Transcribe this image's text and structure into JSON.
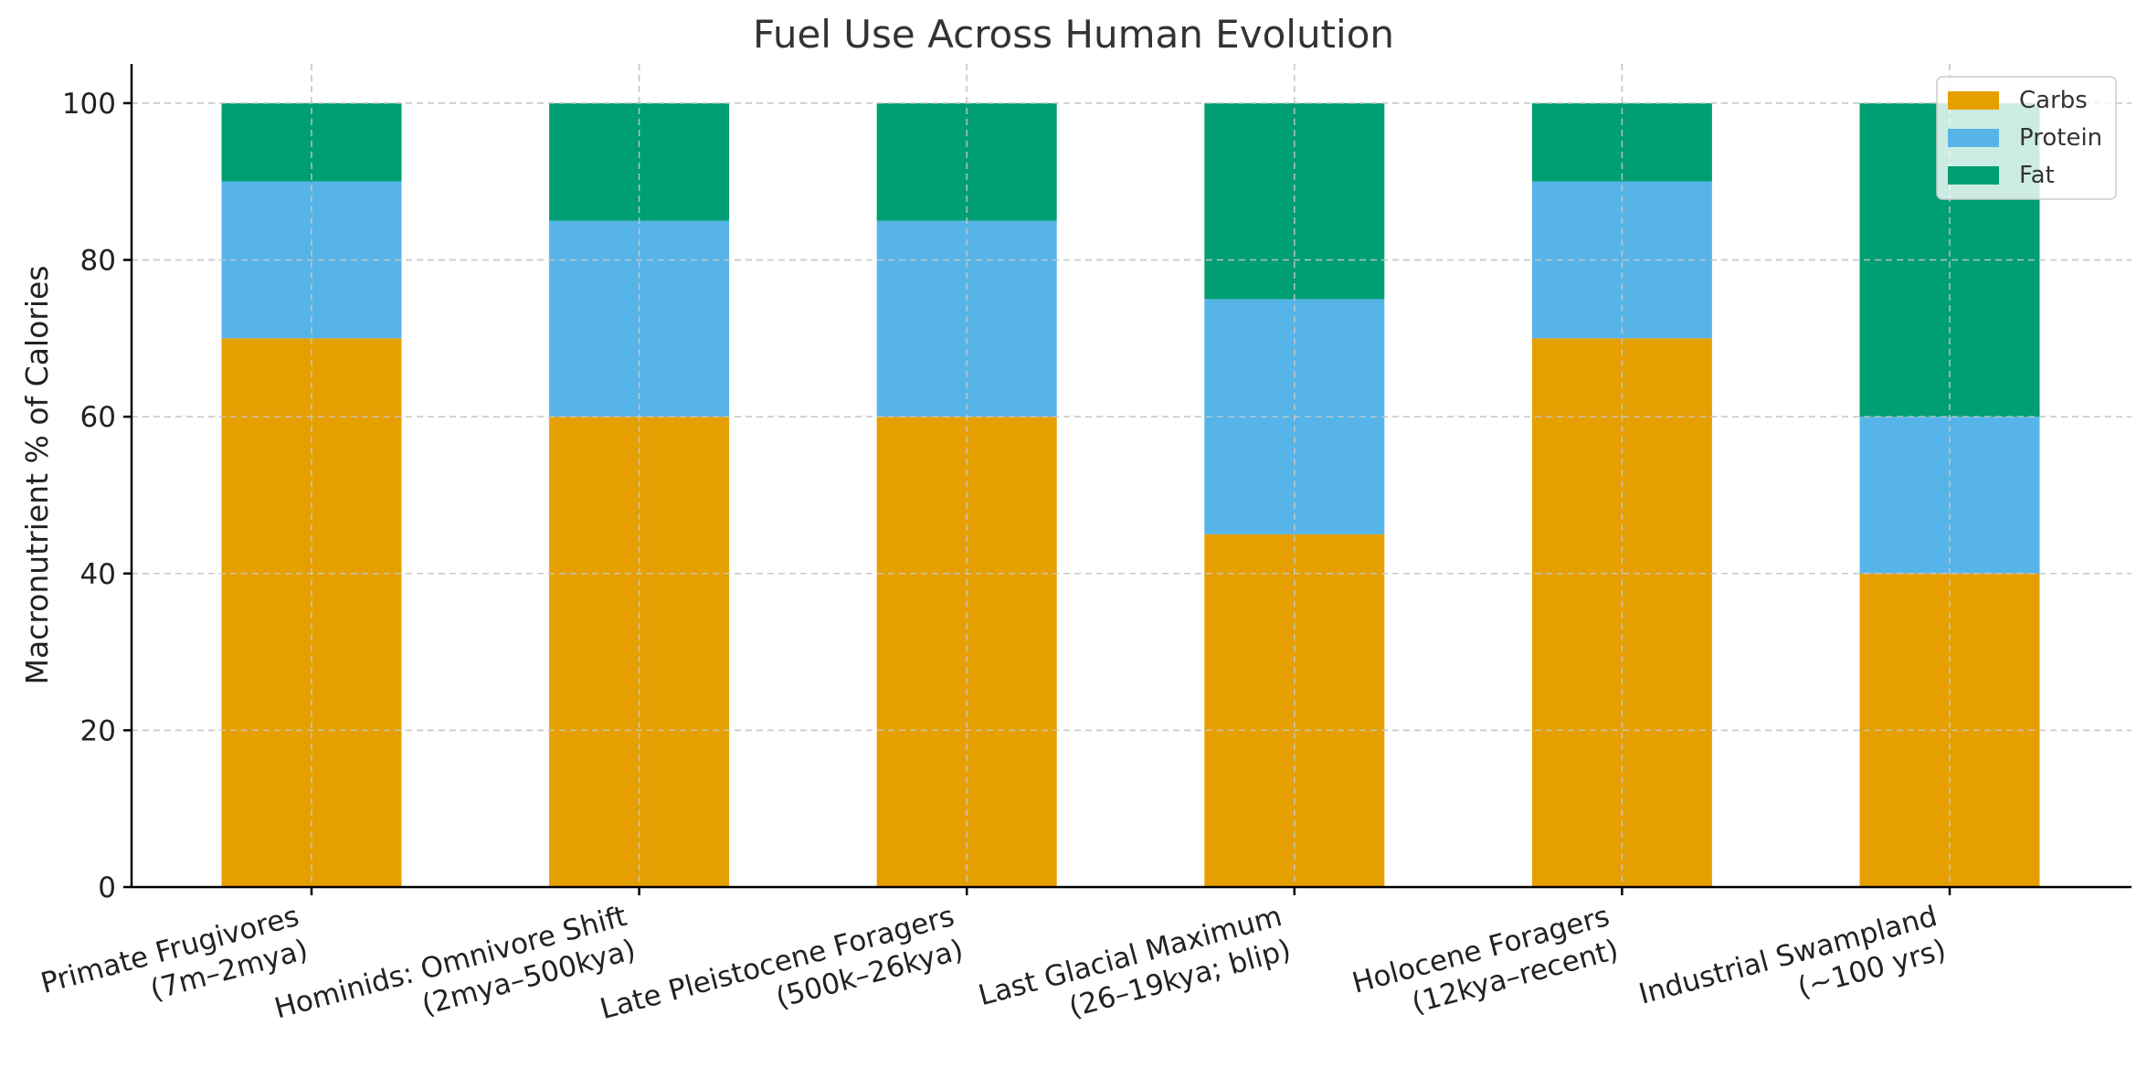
{
  "chart_data": {
    "type": "bar",
    "stacked": true,
    "title": "Fuel Use Across Human Evolution",
    "xlabel": "",
    "ylabel": "Macronutrient % of Calories",
    "ylim": [
      0,
      105
    ],
    "yticks": [
      0,
      20,
      40,
      60,
      80,
      100
    ],
    "grid": true,
    "legend_position": "top-right",
    "categories": [
      [
        "Primate Frugivores",
        "(7m–2mya)"
      ],
      [
        "Hominids: Omnivore Shift",
        "(2mya–500kya)"
      ],
      [
        "Late Pleistocene Foragers",
        "(500k–26kya)"
      ],
      [
        "Last Glacial Maximum",
        "(26–19kya; blip)"
      ],
      [
        "Holocene Foragers",
        "(12kya–recent)"
      ],
      [
        "Industrial Swampland",
        "(~100 yrs)"
      ]
    ],
    "series": [
      {
        "name": "Carbs",
        "color": "#E69F00",
        "values": [
          70,
          60,
          60,
          45,
          70,
          40
        ]
      },
      {
        "name": "Protein",
        "color": "#56B4E9",
        "values": [
          20,
          25,
          25,
          30,
          20,
          20
        ]
      },
      {
        "name": "Fat",
        "color": "#009E73",
        "values": [
          10,
          15,
          15,
          25,
          10,
          40
        ]
      }
    ]
  }
}
